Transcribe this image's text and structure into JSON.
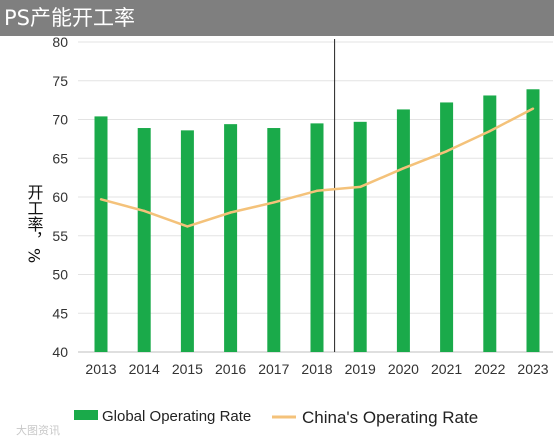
{
  "header": {
    "title": "PS产能开工率"
  },
  "watermark": "大图资讯",
  "chart_data": {
    "type": "bar",
    "title": "PS产能开工率",
    "xlabel": "",
    "ylabel": "开工率，%",
    "categories": [
      "2013",
      "2014",
      "2015",
      "2016",
      "2017",
      "2018",
      "2019",
      "2020",
      "2021",
      "2022",
      "2023"
    ],
    "ylim": [
      40,
      80
    ],
    "yticks": [
      40,
      45,
      50,
      55,
      60,
      65,
      70,
      75,
      80
    ],
    "grid": true,
    "legend_position": "bottom",
    "divider_between": [
      "2018",
      "2019"
    ],
    "series": [
      {
        "name": "Global Operating Rate",
        "type": "bar",
        "color": "#1aaa4a",
        "values": [
          70.4,
          68.9,
          68.6,
          69.4,
          68.9,
          69.5,
          69.7,
          71.3,
          72.2,
          73.1,
          73.9
        ]
      },
      {
        "name": "China's Operating Rate",
        "type": "line",
        "color": "#f4c27a",
        "values": [
          59.7,
          58.2,
          56.2,
          58.0,
          59.3,
          60.8,
          61.3,
          63.7,
          65.9,
          68.5,
          71.4
        ]
      }
    ]
  }
}
